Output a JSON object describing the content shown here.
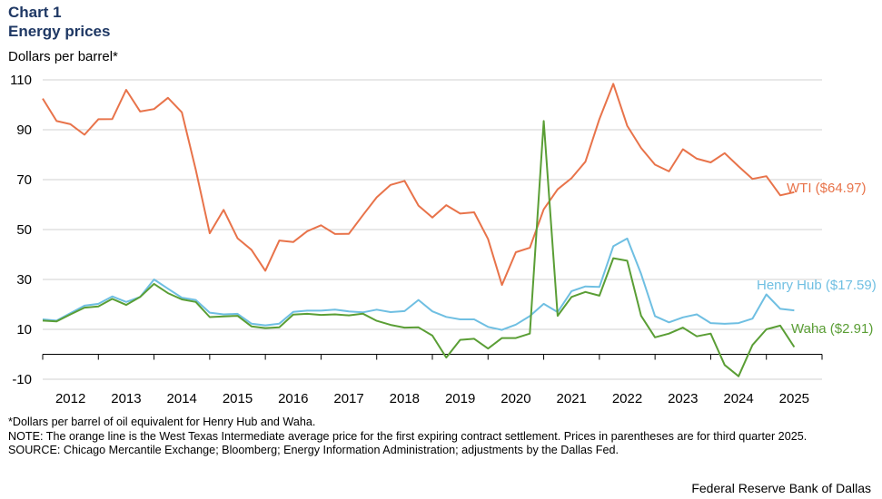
{
  "header": {
    "chart_number": "Chart 1",
    "title": "Energy prices",
    "unit_label": "Dollars per barrel*"
  },
  "chart_data": {
    "type": "line",
    "title": "Energy prices",
    "ylabel": "Dollars per barrel*",
    "ylim": [
      -10,
      110
    ],
    "yticks": [
      110,
      90,
      70,
      50,
      30,
      10,
      -10
    ],
    "xlim": [
      2011.5,
      2025.5
    ],
    "year_ticks": [
      "2012",
      "2013",
      "2014",
      "2015",
      "2016",
      "2017",
      "2018",
      "2019",
      "2020",
      "2021",
      "2022",
      "2023",
      "2024",
      "2025"
    ],
    "series": [
      {
        "name": "WTI",
        "label": "WTI ($64.97)",
        "color": "#e8734a",
        "x": [
          2011.5,
          2011.75,
          2012.0,
          2012.25,
          2012.5,
          2012.75,
          2013.0,
          2013.25,
          2013.5,
          2013.75,
          2014.0,
          2014.25,
          2014.5,
          2014.75,
          2015.0,
          2015.25,
          2015.5,
          2015.75,
          2016.0,
          2016.25,
          2016.5,
          2016.75,
          2017.0,
          2017.25,
          2017.5,
          2017.75,
          2018.0,
          2018.25,
          2018.5,
          2018.75,
          2019.0,
          2019.25,
          2019.5,
          2019.75,
          2020.0,
          2020.25,
          2020.5,
          2020.75,
          2021.0,
          2021.25,
          2021.5,
          2021.75,
          2022.0,
          2022.25,
          2022.5,
          2022.75,
          2023.0,
          2023.25,
          2023.5,
          2023.75,
          2024.0,
          2024.25,
          2024.5,
          2024.75,
          2025.0
        ],
        "values": [
          102.5,
          93.5,
          92.2,
          88.0,
          94.2,
          94.3,
          106.0,
          97.3,
          98.3,
          102.8,
          97.0,
          74.0,
          48.5,
          57.9,
          46.5,
          41.9,
          33.5,
          45.6,
          45.0,
          49.3,
          51.7,
          48.2,
          48.3,
          55.7,
          62.9,
          67.9,
          69.5,
          59.6,
          54.8,
          59.8,
          56.4,
          56.9,
          46.2,
          27.8,
          40.9,
          42.7,
          58.1,
          66.1,
          70.6,
          77.2,
          94.3,
          108.4,
          91.6,
          82.7,
          76.0,
          73.3,
          82.2,
          78.4,
          76.9,
          80.6,
          75.3,
          70.3,
          71.4,
          63.7,
          64.97
        ]
      },
      {
        "name": "Henry Hub",
        "label": "Henry Hub ($17.59)",
        "color": "#6fbfe2",
        "x": [
          2011.5,
          2011.75,
          2012.0,
          2012.25,
          2012.5,
          2012.75,
          2013.0,
          2013.25,
          2013.5,
          2013.75,
          2014.0,
          2014.25,
          2014.5,
          2014.75,
          2015.0,
          2015.25,
          2015.5,
          2015.75,
          2016.0,
          2016.25,
          2016.5,
          2016.75,
          2017.0,
          2017.25,
          2017.5,
          2017.75,
          2018.0,
          2018.25,
          2018.5,
          2018.75,
          2019.0,
          2019.25,
          2019.5,
          2019.75,
          2020.0,
          2020.25,
          2020.5,
          2020.75,
          2021.0,
          2021.25,
          2021.5,
          2021.75,
          2022.0,
          2022.25,
          2022.5,
          2022.75,
          2023.0,
          2023.25,
          2023.5,
          2023.75,
          2024.0,
          2024.25,
          2024.5,
          2024.75,
          2025.0
        ],
        "values": [
          14.0,
          13.5,
          16.5,
          19.5,
          20.2,
          23.2,
          21.0,
          23.0,
          30.0,
          26.3,
          22.7,
          21.8,
          16.7,
          16.0,
          16.2,
          12.3,
          11.6,
          12.3,
          17.0,
          17.5,
          17.5,
          17.9,
          17.2,
          16.8,
          17.9,
          16.9,
          17.3,
          21.8,
          17.2,
          15.0,
          14.0,
          14.0,
          11.0,
          9.8,
          11.9,
          15.3,
          20.2,
          16.9,
          25.3,
          27.2,
          27.0,
          43.3,
          46.4,
          32.2,
          15.3,
          12.8,
          14.8,
          16.0,
          12.5,
          12.2,
          12.5,
          14.3,
          24.0,
          18.2,
          17.59
        ]
      },
      {
        "name": "Waha",
        "label": "Waha ($2.91)",
        "color": "#5a9e35",
        "x": [
          2011.5,
          2011.75,
          2012.0,
          2012.25,
          2012.5,
          2012.75,
          2013.0,
          2013.25,
          2013.5,
          2013.75,
          2014.0,
          2014.25,
          2014.5,
          2014.75,
          2015.0,
          2015.25,
          2015.5,
          2015.75,
          2016.0,
          2016.25,
          2016.5,
          2016.75,
          2017.0,
          2017.25,
          2017.5,
          2017.75,
          2018.0,
          2018.25,
          2018.5,
          2018.75,
          2019.0,
          2019.25,
          2019.5,
          2019.75,
          2020.0,
          2020.25,
          2020.5,
          2020.75,
          2021.0,
          2021.25,
          2021.5,
          2021.75,
          2022.0,
          2022.25,
          2022.5,
          2022.75,
          2023.0,
          2023.25,
          2023.5,
          2023.75,
          2024.0,
          2024.25,
          2024.5,
          2024.75,
          2025.0
        ],
        "values": [
          13.5,
          13.2,
          16.0,
          18.7,
          19.2,
          22.2,
          19.8,
          23.0,
          28.2,
          24.5,
          22.0,
          21.0,
          14.9,
          15.2,
          15.4,
          11.2,
          10.5,
          10.8,
          15.9,
          16.2,
          15.8,
          16.0,
          15.6,
          16.3,
          13.4,
          11.8,
          10.7,
          10.8,
          7.5,
          -1.3,
          5.8,
          6.2,
          2.3,
          6.5,
          6.5,
          8.3,
          93.5,
          15.4,
          23.0,
          25.0,
          23.5,
          38.5,
          37.5,
          15.4,
          6.8,
          8.3,
          10.7,
          7.2,
          8.3,
          -4.3,
          -8.8,
          3.7,
          10.0,
          11.5,
          2.91
        ]
      }
    ]
  },
  "notes": {
    "footnote": "*Dollars per barrel of oil equivalent for Henry Hub and Waha.",
    "note": "NOTE: The orange line is the West Texas Intermediate average price for the first expiring contract settlement. Prices in parentheses are for third quarter 2025.",
    "source": "SOURCE: Chicago Mercantile Exchange; Bloomberg; Energy Information Administration; adjustments by the Dallas Fed.",
    "credit": "Federal Reserve Bank of Dallas"
  }
}
